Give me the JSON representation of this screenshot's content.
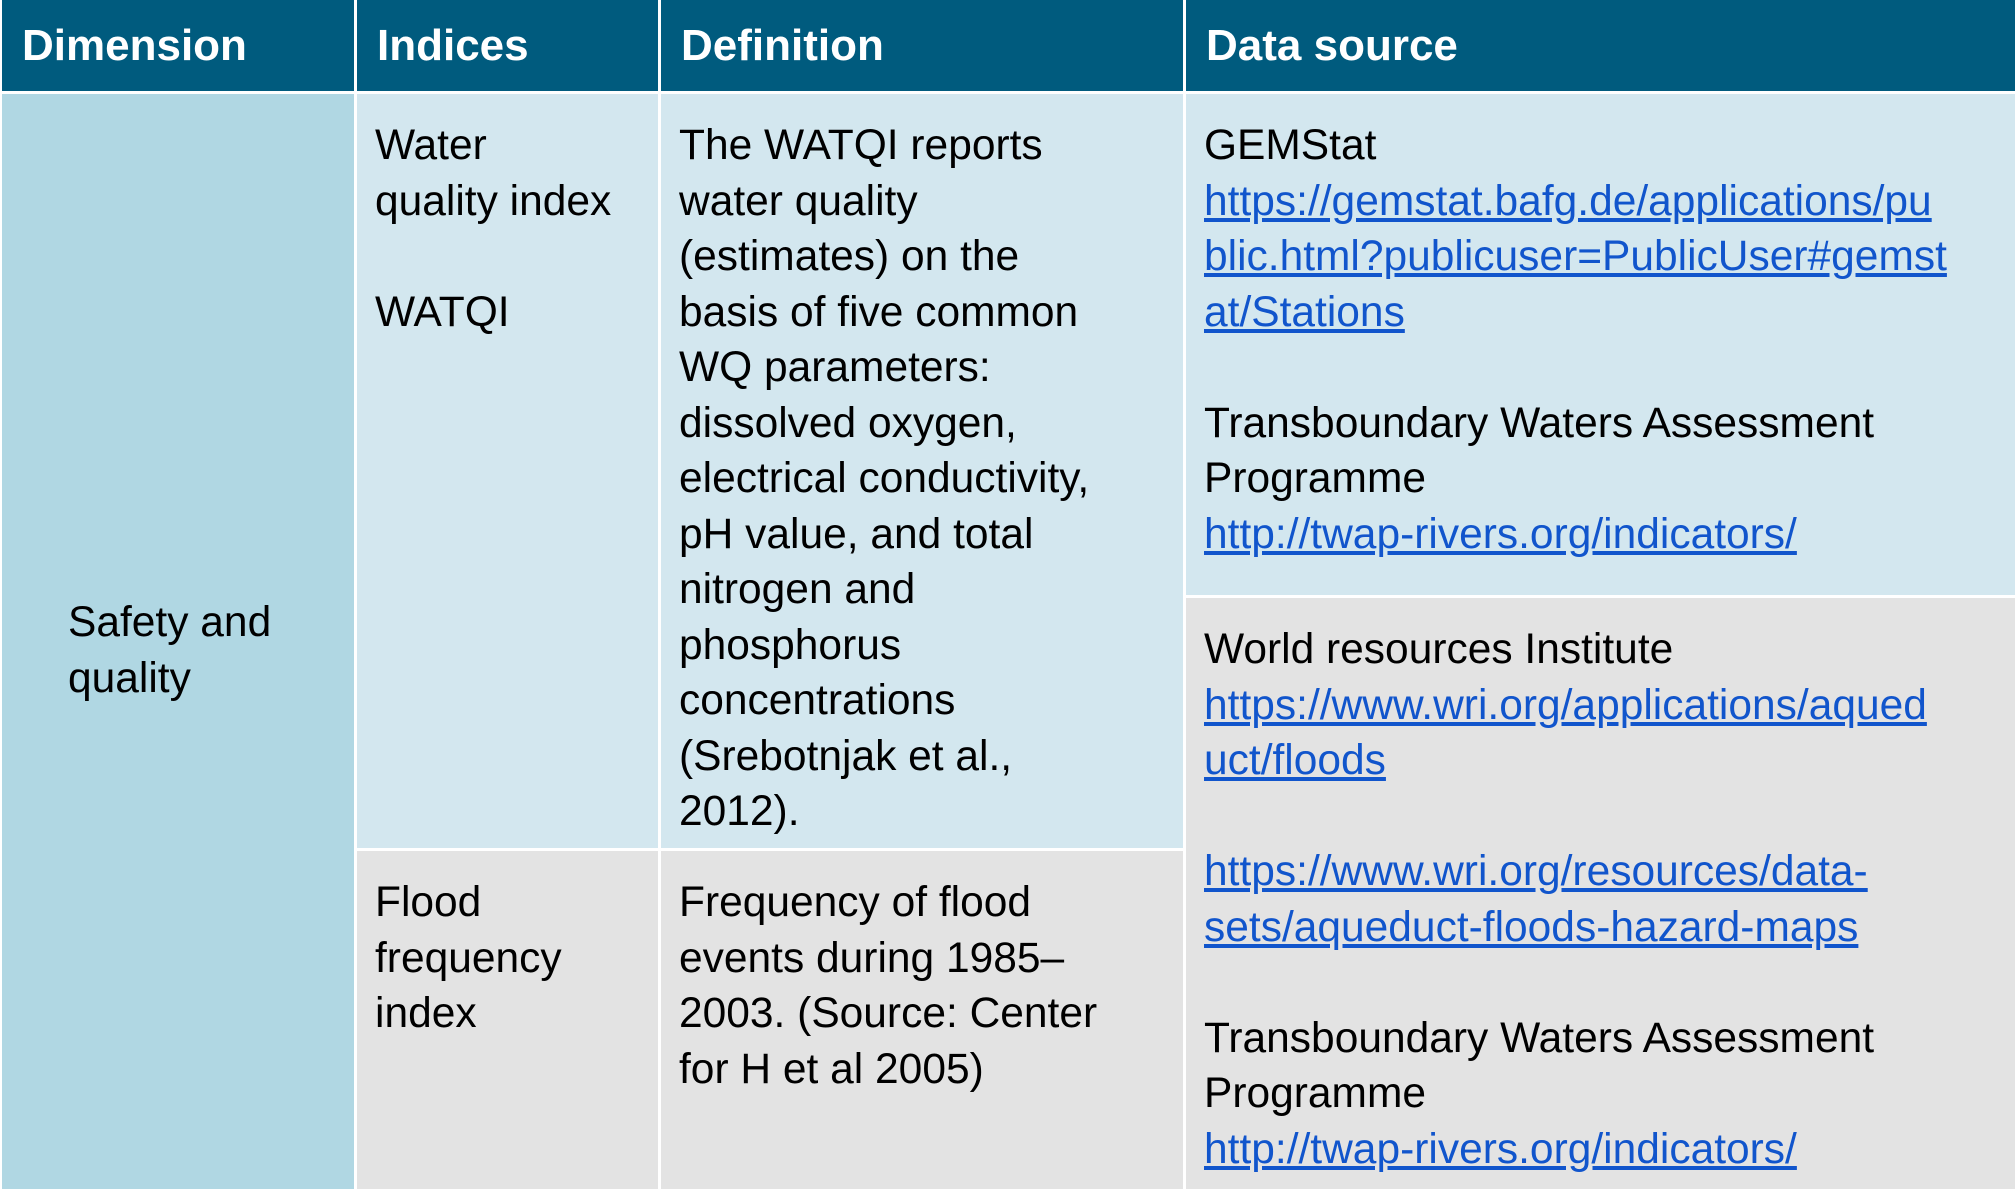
{
  "headers": {
    "dimension": "Dimension",
    "indices": "Indices",
    "definition": "Definition",
    "data_source": "Data source"
  },
  "dimension": {
    "lines": [
      "Safety and",
      "quality"
    ]
  },
  "rows": [
    {
      "index_lines": [
        "Water",
        "quality index",
        "",
        "WATQI"
      ],
      "definition_lines": [
        "The WATQI reports",
        "water quality",
        "(estimates) on the",
        "basis of five common",
        "WQ parameters:",
        "dissolved oxygen,",
        "electrical conductivity,",
        "pH value, and total",
        "nitrogen and",
        "phosphorus",
        "concentrations",
        "(Srebotnjak et al.,",
        "2012)."
      ]
    },
    {
      "index_lines": [
        "Flood",
        "frequency",
        "index"
      ],
      "definition_lines": [
        "Frequency of flood",
        "events during 1985–",
        "2003. (Source: Center",
        "for H et al 2005)"
      ]
    }
  ],
  "sources": [
    {
      "name": "GEMStat",
      "link_lines": [
        "https://gemstat.bafg.de/applications/pu",
        "blic.html?publicuser=PublicUser#gemst",
        "at/Stations"
      ],
      "name2_lines": [
        "Transboundary Waters Assessment",
        "Programme"
      ],
      "link2": "http://twap-rivers.org/indicators/"
    },
    {
      "name": "World resources Institute",
      "link_lines": [
        "https://www.wri.org/applications/aqued",
        "uct/floods"
      ],
      "link_b_lines": [
        "https://www.wri.org/resources/data-",
        "sets/aqueduct-floods-hazard-maps"
      ],
      "name2_lines": [
        "Transboundary Waters Assessment",
        "Programme"
      ],
      "link2": "http://twap-rivers.org/indicators/"
    }
  ],
  "colors": {
    "header_bg": "#005b7e",
    "dimension_bg": "#b0d7e3",
    "row_light": "#d3e7ef",
    "row_grey": "#e3e3e3",
    "link": "#1155cc"
  }
}
